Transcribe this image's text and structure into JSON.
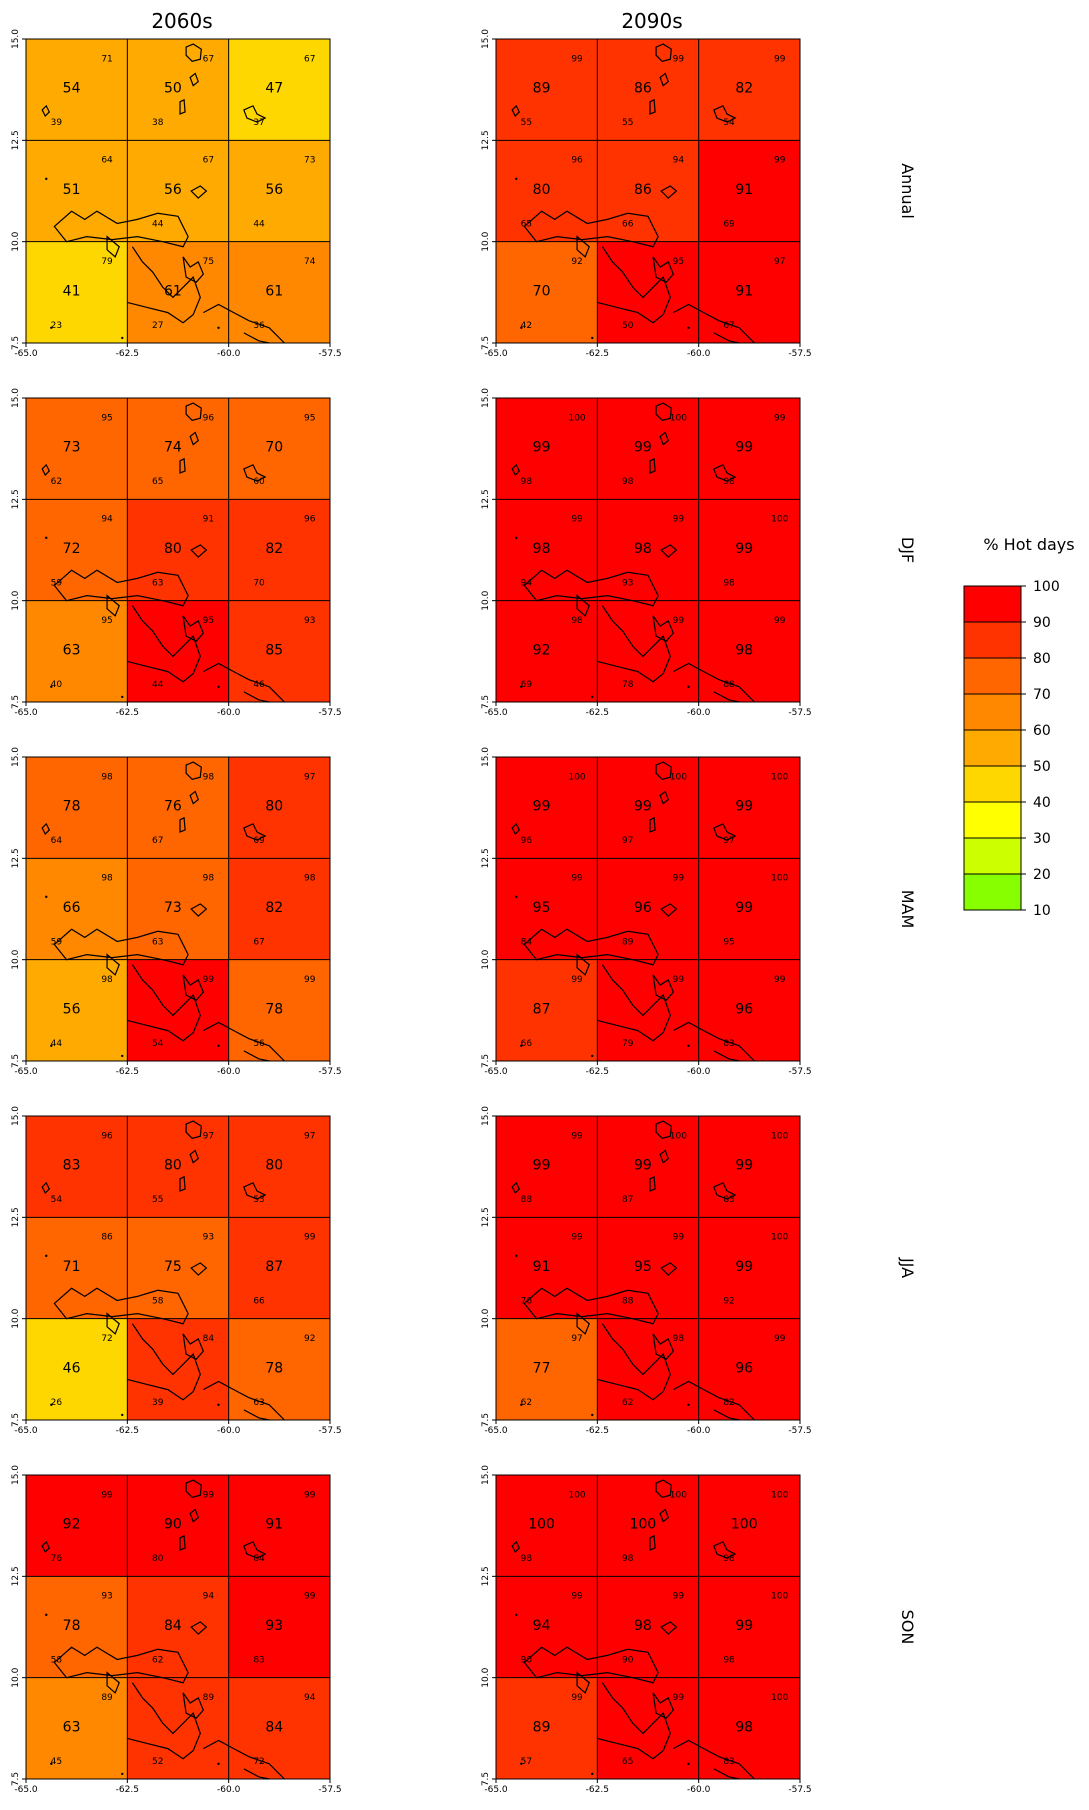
{
  "columns": [
    "2060s",
    "2090s"
  ],
  "rows": [
    "Annual",
    "DJF",
    "MAM",
    "JJA",
    "SON"
  ],
  "axes": {
    "x_ticks": [
      "-65.0",
      "-62.5",
      "-60.0",
      "-57.5"
    ],
    "y_ticks": [
      "7.5",
      "10.0",
      "12.5",
      "15.0"
    ]
  },
  "legend": {
    "title": "% Hot days",
    "levels": [
      "100",
      "90",
      "80",
      "70",
      "60",
      "50",
      "40",
      "30",
      "20",
      "10"
    ],
    "colors": [
      "#ff0000",
      "#ff3300",
      "#ff6600",
      "#ff8800",
      "#ffaa00",
      "#ffd700",
      "#ffff00",
      "#ccff00",
      "#88ff00"
    ]
  },
  "maps": [
    {
      "period": "2060s",
      "season": "Annual",
      "values": [
        [
          54,
          50,
          47
        ],
        [
          51,
          56,
          56
        ],
        [
          41,
          61,
          61
        ]
      ],
      "highs": [
        [
          71,
          67,
          67
        ],
        [
          64,
          67,
          73
        ],
        [
          79,
          75,
          74
        ]
      ],
      "lows": [
        [
          39,
          38,
          37
        ],
        [
          null,
          44,
          44
        ],
        [
          23,
          27,
          36
        ]
      ]
    },
    {
      "period": "2090s",
      "season": "Annual",
      "values": [
        [
          89,
          86,
          82
        ],
        [
          80,
          86,
          91
        ],
        [
          70,
          null,
          91
        ]
      ],
      "highs": [
        [
          99,
          99,
          99
        ],
        [
          96,
          94,
          99
        ],
        [
          92,
          95,
          97
        ]
      ],
      "lows": [
        [
          55,
          55,
          54
        ],
        [
          65,
          66,
          69
        ],
        [
          42,
          50,
          67
        ]
      ]
    },
    {
      "period": "2060s",
      "season": "DJF",
      "values": [
        [
          73,
          74,
          70
        ],
        [
          72,
          80,
          82
        ],
        [
          63,
          null,
          85
        ]
      ],
      "highs": [
        [
          95,
          96,
          95
        ],
        [
          94,
          91,
          96
        ],
        [
          95,
          95,
          93
        ]
      ],
      "lows": [
        [
          62,
          65,
          60
        ],
        [
          59,
          63,
          70
        ],
        [
          40,
          44,
          46
        ]
      ]
    },
    {
      "period": "2090s",
      "season": "DJF",
      "values": [
        [
          99,
          99,
          99
        ],
        [
          98,
          98,
          99
        ],
        [
          92,
          null,
          98
        ]
      ],
      "highs": [
        [
          100,
          100,
          99
        ],
        [
          99,
          99,
          100
        ],
        [
          98,
          99,
          99
        ]
      ],
      "lows": [
        [
          98,
          98,
          98
        ],
        [
          94,
          93,
          98
        ],
        [
          69,
          78,
          88
        ]
      ]
    },
    {
      "period": "2060s",
      "season": "MAM",
      "values": [
        [
          78,
          76,
          80
        ],
        [
          66,
          73,
          82
        ],
        [
          56,
          null,
          78
        ]
      ],
      "highs": [
        [
          98,
          98,
          97
        ],
        [
          98,
          98,
          98
        ],
        [
          98,
          99,
          99
        ]
      ],
      "lows": [
        [
          64,
          67,
          69
        ],
        [
          59,
          63,
          67
        ],
        [
          44,
          54,
          56
        ]
      ]
    },
    {
      "period": "2090s",
      "season": "MAM",
      "values": [
        [
          99,
          99,
          99
        ],
        [
          95,
          96,
          99
        ],
        [
          87,
          null,
          96
        ]
      ],
      "highs": [
        [
          100,
          100,
          100
        ],
        [
          99,
          99,
          100
        ],
        [
          99,
          99,
          99
        ]
      ],
      "lows": [
        [
          96,
          97,
          97
        ],
        [
          84,
          89,
          95
        ],
        [
          66,
          79,
          83
        ]
      ]
    },
    {
      "period": "2060s",
      "season": "JJA",
      "values": [
        [
          83,
          80,
          80
        ],
        [
          71,
          75,
          87
        ],
        [
          46,
          null,
          78
        ]
      ],
      "highs": [
        [
          96,
          97,
          97
        ],
        [
          86,
          93,
          99
        ],
        [
          72,
          84,
          92
        ]
      ],
      "lows": [
        [
          54,
          55,
          53
        ],
        [
          null,
          58,
          66
        ],
        [
          26,
          39,
          63
        ]
      ]
    },
    {
      "period": "2090s",
      "season": "JJA",
      "values": [
        [
          99,
          99,
          99
        ],
        [
          91,
          95,
          99
        ],
        [
          77,
          null,
          96
        ]
      ],
      "highs": [
        [
          99,
          100,
          100
        ],
        [
          99,
          99,
          100
        ],
        [
          97,
          98,
          99
        ]
      ],
      "lows": [
        [
          88,
          87,
          83
        ],
        [
          76,
          88,
          92
        ],
        [
          62,
          62,
          82
        ]
      ]
    },
    {
      "period": "2060s",
      "season": "SON",
      "values": [
        [
          92,
          90,
          91
        ],
        [
          78,
          84,
          93
        ],
        [
          63,
          null,
          84
        ]
      ],
      "highs": [
        [
          99,
          99,
          99
        ],
        [
          93,
          94,
          99
        ],
        [
          89,
          89,
          94
        ]
      ],
      "lows": [
        [
          76,
          80,
          84
        ],
        [
          58,
          62,
          83
        ],
        [
          45,
          52,
          72
        ]
      ]
    },
    {
      "period": "2090s",
      "season": "SON",
      "values": [
        [
          100,
          100,
          100
        ],
        [
          94,
          98,
          99
        ],
        [
          89,
          null,
          98
        ]
      ],
      "highs": [
        [
          100,
          100,
          100
        ],
        [
          99,
          99,
          100
        ],
        [
          99,
          99,
          100
        ]
      ],
      "lows": [
        [
          98,
          98,
          98
        ],
        [
          90,
          90,
          98
        ],
        [
          57,
          65,
          83
        ]
      ]
    }
  ]
}
